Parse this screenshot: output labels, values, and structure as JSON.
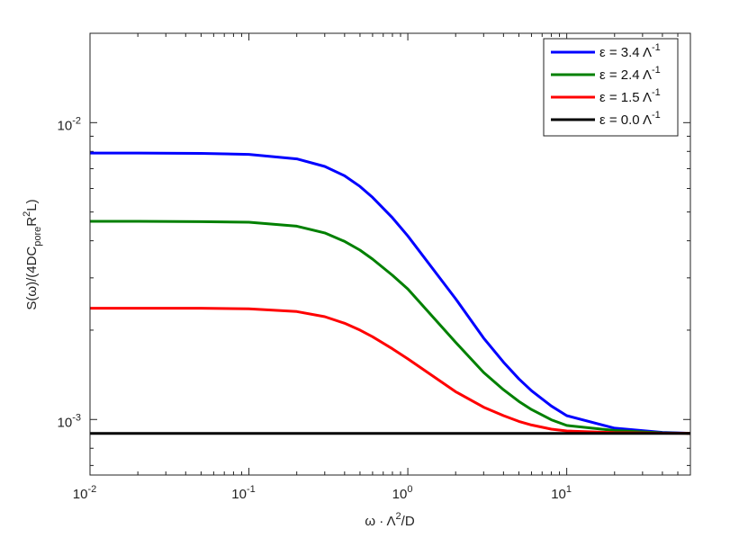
{
  "chart_data": {
    "type": "line",
    "title": "",
    "xscale": "log",
    "yscale": "log",
    "xlim": [
      0.01,
      60
    ],
    "ylim": [
      0.00065,
      0.02
    ],
    "grid": false,
    "legend_position": "top-right",
    "xlabel": {
      "base": "ω · Λ",
      "sup": "2",
      "tail": "/D"
    },
    "ylabel": {
      "part1": "S(ω)/(4DC",
      "sub": "pore",
      "part2": "R",
      "sup": "2",
      "part3": "L)"
    },
    "x_ticks": [
      {
        "value": 0.01,
        "base": "10",
        "exp": "-2"
      },
      {
        "value": 0.1,
        "base": "10",
        "exp": "-1"
      },
      {
        "value": 1,
        "base": "10",
        "exp": "0"
      },
      {
        "value": 10,
        "base": "10",
        "exp": "1"
      }
    ],
    "y_ticks": [
      {
        "value": 0.001,
        "base": "10",
        "exp": "-3"
      },
      {
        "value": 0.01,
        "base": "10",
        "exp": "-2"
      }
    ],
    "x": [
      0.01,
      0.02,
      0.05,
      0.1,
      0.2,
      0.3,
      0.4,
      0.5,
      0.6,
      0.8,
      1,
      2,
      3,
      4,
      5,
      6,
      8,
      10,
      20,
      40,
      60
    ],
    "series": [
      {
        "name": "ε = 3.4 Λ",
        "sup": "-1",
        "color": "#0000ff",
        "values": [
          0.0079,
          0.0079,
          0.00788,
          0.00782,
          0.00755,
          0.00712,
          0.00662,
          0.0061,
          0.0056,
          0.00478,
          0.00415,
          0.00255,
          0.00188,
          0.00156,
          0.00137,
          0.00125,
          0.00111,
          0.00103,
          0.000935,
          0.000905,
          0.000898
        ]
      },
      {
        "name": "ε = 2.4 Λ",
        "sup": "-1",
        "color": "#008000",
        "values": [
          0.00465,
          0.00465,
          0.00464,
          0.00462,
          0.00448,
          0.00425,
          0.00398,
          0.00372,
          0.00347,
          0.00306,
          0.00275,
          0.00182,
          0.00144,
          0.00126,
          0.00115,
          0.00108,
          0.000998,
          0.000955,
          0.000918,
          0.000902,
          0.000898
        ]
      },
      {
        "name": "ε = 1.5 Λ",
        "sup": "-1",
        "color": "#ff0000",
        "values": [
          0.00237,
          0.00237,
          0.00237,
          0.00236,
          0.00231,
          0.00222,
          0.00211,
          0.002,
          0.0019,
          0.00173,
          0.0016,
          0.00124,
          0.0011,
          0.00103,
          0.000985,
          0.000958,
          0.000928,
          0.000915,
          0.000903,
          0.000899,
          0.000898
        ]
      },
      {
        "name": "ε = 0.0 Λ",
        "sup": "-1",
        "color": "#000000",
        "values": [
          0.000898,
          0.000898,
          0.000898,
          0.000898,
          0.000898,
          0.000898,
          0.000898,
          0.000898,
          0.000898,
          0.000898,
          0.000898,
          0.000898,
          0.000898,
          0.000898,
          0.000898,
          0.000898,
          0.000898,
          0.000898,
          0.000898,
          0.000898,
          0.000898
        ]
      }
    ]
  }
}
